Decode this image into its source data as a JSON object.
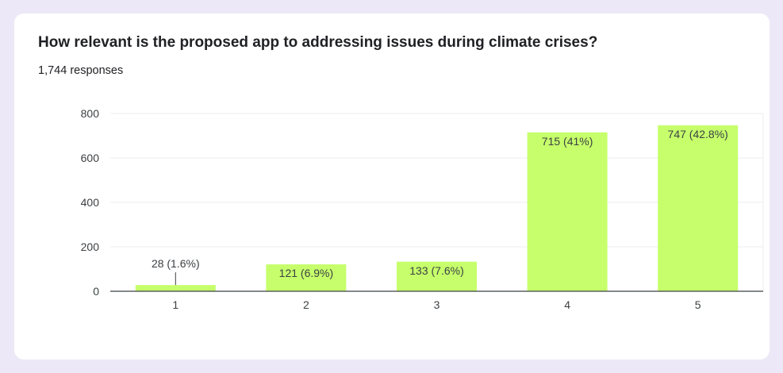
{
  "card": {
    "title": "How relevant is the proposed app to addressing issues during climate crises?",
    "responses": "1,744 responses"
  },
  "colors": {
    "bar": "#c6ff6b",
    "bar_stroke": "#b6ef5b",
    "grid": "#ececec",
    "axis": "#3c4043",
    "label": "#3c4043"
  },
  "chart_data": {
    "type": "bar",
    "title": "How relevant is the proposed app to addressing issues during climate crises?",
    "xlabel": "",
    "ylabel": "",
    "categories": [
      "1",
      "2",
      "3",
      "4",
      "5"
    ],
    "values": [
      28,
      121,
      133,
      715,
      747
    ],
    "data_labels": [
      "28 (1.6%)",
      "121 (6.9%)",
      "133 (7.6%)",
      "715 (41%)",
      "747 (42.8%)"
    ],
    "y_ticks": [
      0,
      200,
      400,
      600,
      800
    ],
    "ylim": [
      0,
      800
    ],
    "grid": true,
    "legend": "none"
  }
}
